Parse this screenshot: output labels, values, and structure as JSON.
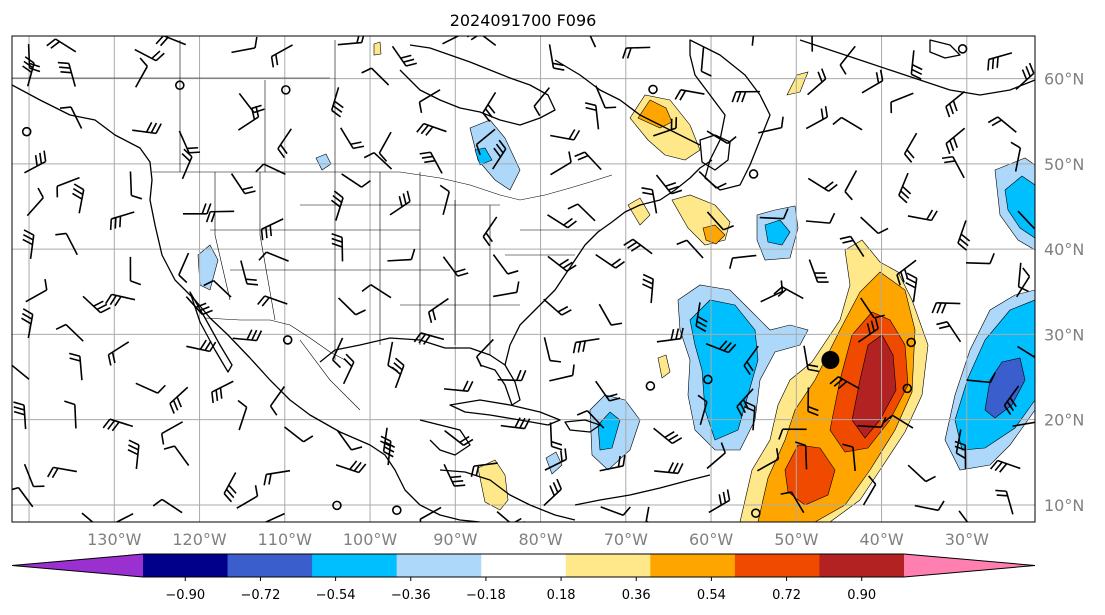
{
  "title": "2024091700 F096",
  "map": {
    "longitude_labels": [
      "130°W",
      "120°W",
      "110°W",
      "100°W",
      "90°W",
      "80°W",
      "70°W",
      "60°W",
      "50°W",
      "40°W",
      "30°W"
    ],
    "latitude_labels": [
      "60°N",
      "50°N",
      "40°N",
      "30°N",
      "20°N",
      "10°N"
    ],
    "lon_range": [
      -142,
      -22
    ],
    "lat_range": [
      8,
      65
    ],
    "gridlines": true,
    "storm_marker": {
      "lon": -46,
      "lat": 27
    }
  },
  "colorbar": {
    "extend": "both",
    "tick_labels": [
      "−0.90",
      "−0.72",
      "−0.54",
      "−0.36",
      "−0.18",
      "0.18",
      "0.36",
      "0.54",
      "0.72",
      "0.90"
    ],
    "bins": [
      {
        "range": "< -0.90",
        "color": "#9b30d0"
      },
      {
        "range": "-0.90 to -0.72",
        "color": "#00008b"
      },
      {
        "range": "-0.72 to -0.54",
        "color": "#3a5fcd"
      },
      {
        "range": "-0.54 to -0.36",
        "color": "#00bfff"
      },
      {
        "range": "-0.36 to -0.18",
        "color": "#add8fa"
      },
      {
        "range": "-0.18 to 0.18",
        "color": "#ffffff"
      },
      {
        "range": "0.18 to 0.36",
        "color": "#ffe88a"
      },
      {
        "range": "0.36 to 0.54",
        "color": "#ffa500"
      },
      {
        "range": "0.54 to 0.72",
        "color": "#f04a00"
      },
      {
        "range": "0.72 to 0.90",
        "color": "#b22222"
      },
      {
        "range": "> 0.90",
        "color": "#ff80b0"
      }
    ]
  }
}
